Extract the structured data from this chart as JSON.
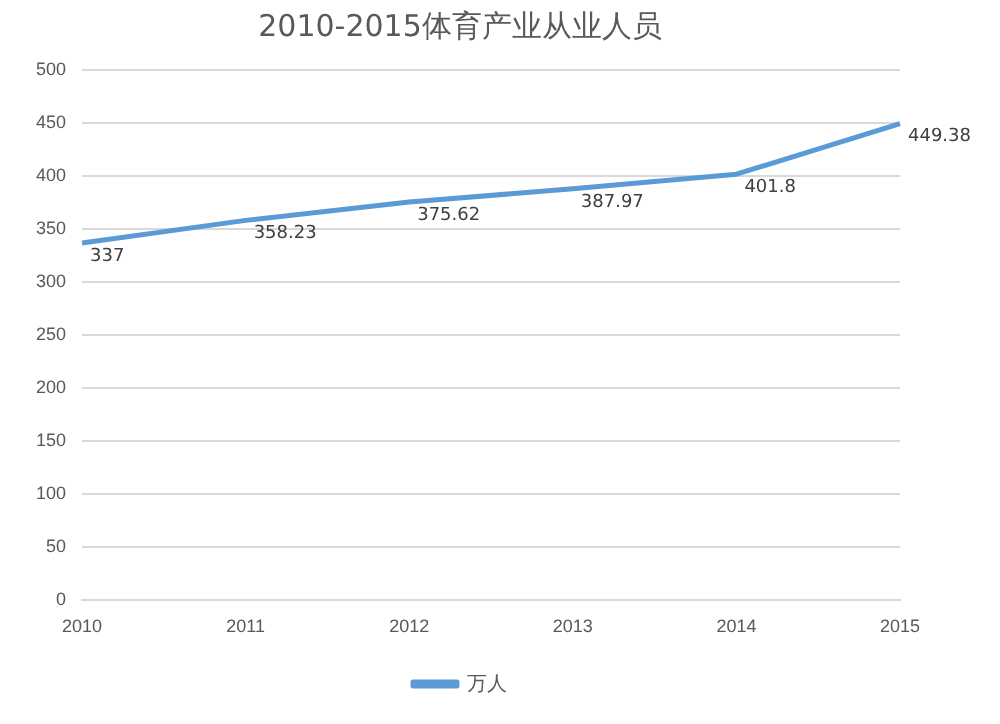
{
  "chart_data": {
    "type": "line",
    "title": "2010-2015体育产业从业人员",
    "categories": [
      "2010",
      "2011",
      "2012",
      "2013",
      "2014",
      "2015"
    ],
    "series": [
      {
        "name": "万人",
        "color": "#5b9bd5",
        "values": [
          337,
          358.23,
          375.62,
          387.97,
          401.8,
          449.38
        ]
      }
    ],
    "ylim": [
      0,
      500
    ],
    "yticks": [
      0,
      50,
      100,
      150,
      200,
      250,
      300,
      350,
      400,
      450,
      500
    ],
    "grid": "y",
    "legend": "bottom",
    "marker": "none",
    "data_labels": true
  }
}
